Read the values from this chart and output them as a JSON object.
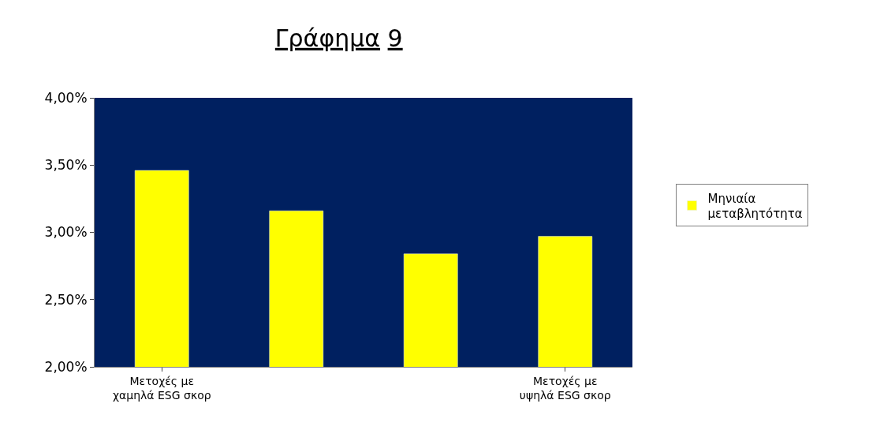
{
  "chart_data": {
    "type": "bar",
    "title": "Γράφημα 9",
    "categories": [
      "Μετοχές με\nχαμηλά ESG σκορ",
      null,
      null,
      "Μετοχές με\nυψηλά ESG σκορ"
    ],
    "series": [
      {
        "name": "Μηνιαία μεταβλητότητα",
        "color": "#ffff00",
        "values": [
          3.46,
          3.16,
          2.84,
          2.97
        ]
      }
    ],
    "ylim": [
      2.0,
      4.0
    ],
    "yticks": [
      {
        "value": 2.0,
        "label": "2,00%"
      },
      {
        "value": 2.5,
        "label": "2,50%"
      },
      {
        "value": 3.0,
        "label": "3,00%"
      },
      {
        "value": 3.5,
        "label": "3,50%"
      },
      {
        "value": 4.0,
        "label": "4,00%"
      }
    ],
    "grid": false,
    "legend": "right"
  }
}
